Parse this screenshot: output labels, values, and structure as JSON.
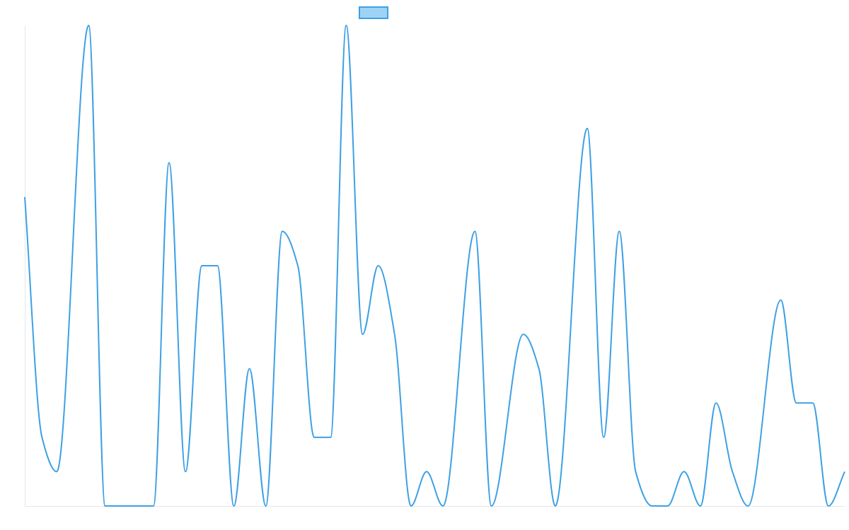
{
  "chart_data": {
    "type": "line",
    "title": "",
    "xlabel": "",
    "ylabel": "",
    "grid": false,
    "legend": {
      "placement": "top-center",
      "entries": [
        ""
      ]
    },
    "colors": {
      "line": "#3ea0e4",
      "legend_fill": "#9fd3f5",
      "axis": "#e6e6e6"
    },
    "ylim": [
      0,
      14
    ],
    "series": [
      {
        "name": "",
        "values": [
          9,
          2,
          1,
          14,
          0,
          0,
          0,
          10,
          1,
          7,
          7,
          0,
          4,
          0,
          8,
          7,
          2,
          2,
          14,
          5,
          7,
          5,
          0,
          1,
          0,
          8,
          0,
          5,
          4,
          0,
          11,
          2,
          8,
          1,
          0,
          0,
          1,
          0,
          3,
          1,
          0,
          6,
          3,
          3,
          0,
          1
        ]
      }
    ],
    "x": [
      0.0,
      0.021,
      0.039,
      0.078,
      0.098,
      0.127,
      0.157,
      0.176,
      0.196,
      0.216,
      0.235,
      0.255,
      0.274,
      0.294,
      0.314,
      0.333,
      0.353,
      0.373,
      0.392,
      0.412,
      0.431,
      0.451,
      0.471,
      0.49,
      0.51,
      0.549,
      0.569,
      0.608,
      0.627,
      0.647,
      0.686,
      0.706,
      0.725,
      0.745,
      0.765,
      0.784,
      0.804,
      0.824,
      0.843,
      0.863,
      0.882,
      0.922,
      0.941,
      0.961,
      0.98,
      1.0
    ]
  }
}
